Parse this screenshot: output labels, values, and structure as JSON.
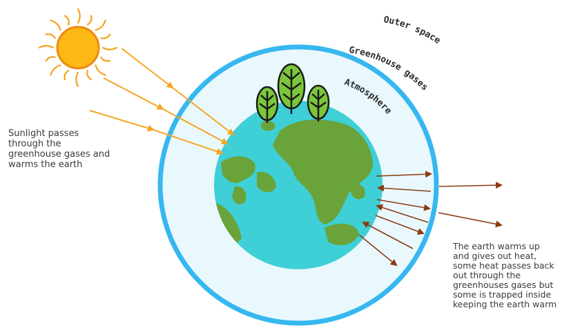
{
  "labels": {
    "outer_space": "Outer space",
    "greenhouse_gases": "Greenhouse gases",
    "atmosphere": "Atmosphere"
  },
  "captions": {
    "incoming": "Sunlight passes\nthrough the\ngreenhouse gases and\nwarms the earth",
    "outgoing": "The earth warms up\nand gives out heat,\nsome heat passes back\nout through the\ngreenhouses gases but\nsome is trapped inside\nkeeping the earth warm"
  },
  "colors": {
    "sun": "#fcb814",
    "sun_rays": "#f7a21b",
    "sunlight_arrows": "#f5a623",
    "heat_arrows": "#8b3a12",
    "atmosphere_ring": "#37b7ef",
    "atmosphere_fill": "#e9f8fd",
    "ocean": "#3fcfd6",
    "land": "#6aa33a",
    "tree": "#7bc63a",
    "outline": "#1a1a1a"
  }
}
